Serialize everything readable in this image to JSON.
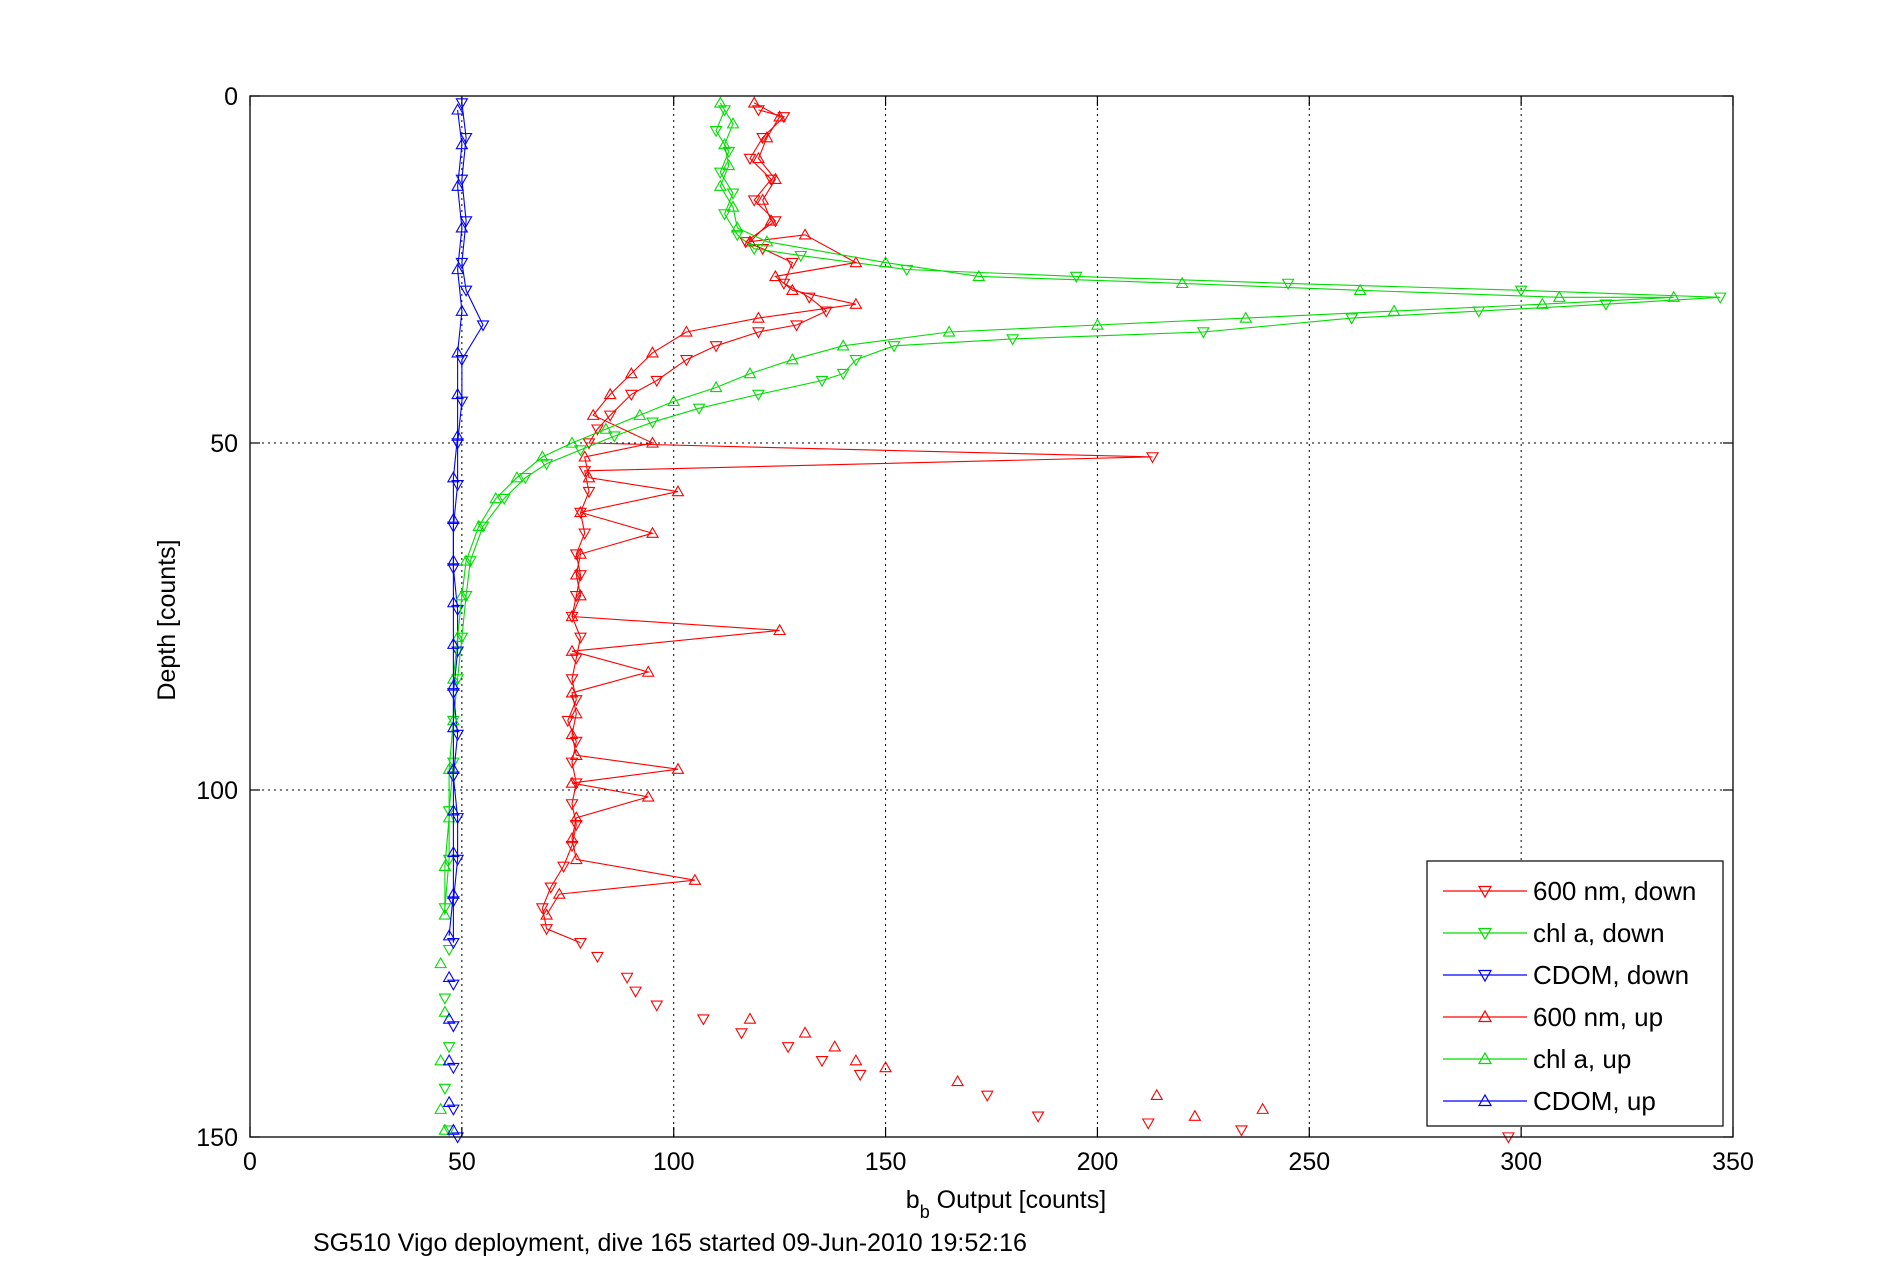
{
  "chart_data": {
    "type": "scatter",
    "title": "",
    "xlabel_main": "b",
    "xlabel_sub": "b",
    "xlabel_rest": " Output [counts]",
    "ylabel": "Depth [counts]",
    "caption": "SG510 Vigo deployment, dive 165 started 09-Jun-2010 19:52:16",
    "xlim": [
      0,
      350
    ],
    "ylim": [
      0,
      150
    ],
    "y_reversed": true,
    "grid": true,
    "legend_position": "bottom-right",
    "x_ticks": [
      "0",
      "50",
      "100",
      "150",
      "200",
      "250",
      "300",
      "350"
    ],
    "y_ticks": [
      "0",
      "50",
      "100",
      "150"
    ],
    "colors": {
      "red": "#ff0000",
      "green": "#00dd00",
      "blue": "#0000ff"
    },
    "series": [
      {
        "name": "600 nm, down",
        "color": "#ff0000",
        "marker": "triangle-down",
        "points": [
          [
            120,
            2
          ],
          [
            126,
            3
          ],
          [
            121,
            6
          ],
          [
            118,
            9
          ],
          [
            123,
            12
          ],
          [
            119,
            15
          ],
          [
            124,
            18
          ],
          [
            117,
            21
          ],
          [
            121,
            22
          ],
          [
            128,
            24
          ],
          [
            126,
            27
          ],
          [
            132,
            29
          ],
          [
            136,
            31
          ],
          [
            129,
            33
          ],
          [
            120,
            34
          ],
          [
            110,
            36
          ],
          [
            103,
            38
          ],
          [
            96,
            41
          ],
          [
            90,
            43
          ],
          [
            85,
            46
          ],
          [
            82,
            48
          ],
          [
            80,
            50
          ],
          [
            213,
            52
          ],
          [
            79,
            54
          ],
          [
            80,
            57
          ],
          [
            78,
            60
          ],
          [
            79,
            63
          ],
          [
            77,
            66
          ],
          [
            78,
            69
          ],
          [
            77,
            72
          ],
          [
            76,
            75
          ],
          [
            78,
            78
          ],
          [
            77,
            81
          ],
          [
            76,
            84
          ],
          [
            77,
            87
          ],
          [
            75,
            90
          ],
          [
            77,
            93
          ],
          [
            76,
            96
          ],
          [
            77,
            99
          ],
          [
            76,
            102
          ],
          [
            77,
            105
          ],
          [
            76,
            108
          ],
          [
            74,
            111
          ],
          [
            71,
            114
          ],
          [
            69,
            117
          ],
          [
            70,
            120
          ],
          [
            78,
            122
          ],
          [
            82,
            124
          ],
          [
            89,
            127
          ],
          [
            91,
            129
          ],
          [
            96,
            131
          ],
          [
            107,
            133
          ],
          [
            116,
            135
          ],
          [
            127,
            137
          ],
          [
            135,
            139
          ],
          [
            144,
            141
          ],
          [
            174,
            144
          ],
          [
            186,
            147
          ],
          [
            212,
            148
          ],
          [
            234,
            149
          ],
          [
            297,
            150
          ]
        ]
      },
      {
        "name": "chl a, down",
        "color": "#00dd00",
        "marker": "triangle-down",
        "points": [
          [
            112,
            2
          ],
          [
            110,
            5
          ],
          [
            113,
            8
          ],
          [
            111,
            11
          ],
          [
            114,
            14
          ],
          [
            112,
            17
          ],
          [
            115,
            20
          ],
          [
            119,
            22
          ],
          [
            130,
            23
          ],
          [
            155,
            25
          ],
          [
            195,
            26
          ],
          [
            245,
            27
          ],
          [
            300,
            28
          ],
          [
            347,
            29
          ],
          [
            320,
            30
          ],
          [
            290,
            31
          ],
          [
            260,
            32
          ],
          [
            225,
            34
          ],
          [
            180,
            35
          ],
          [
            152,
            36
          ],
          [
            143,
            38
          ],
          [
            140,
            40
          ],
          [
            135,
            41
          ],
          [
            120,
            43
          ],
          [
            106,
            45
          ],
          [
            95,
            47
          ],
          [
            86,
            49
          ],
          [
            78,
            51
          ],
          [
            70,
            53
          ],
          [
            65,
            55
          ],
          [
            60,
            58
          ],
          [
            55,
            62
          ],
          [
            52,
            67
          ],
          [
            51,
            72
          ],
          [
            50,
            78
          ],
          [
            49,
            84
          ],
          [
            48,
            90
          ],
          [
            48,
            96
          ],
          [
            47,
            103
          ],
          [
            47,
            110
          ],
          [
            46,
            117
          ],
          [
            47,
            123
          ],
          [
            46,
            130
          ],
          [
            47,
            137
          ],
          [
            46,
            143
          ],
          [
            47,
            149
          ]
        ]
      },
      {
        "name": "CDOM, down",
        "color": "#0000ff",
        "marker": "triangle-down",
        "points": [
          [
            50,
            1
          ],
          [
            51,
            6
          ],
          [
            50,
            12
          ],
          [
            51,
            18
          ],
          [
            50,
            24
          ],
          [
            51,
            28
          ],
          [
            55,
            33
          ],
          [
            50,
            38
          ],
          [
            50,
            44
          ],
          [
            49,
            50
          ],
          [
            49,
            56
          ],
          [
            48,
            62
          ],
          [
            48,
            68
          ],
          [
            49,
            74
          ],
          [
            49,
            80
          ],
          [
            48,
            86
          ],
          [
            49,
            92
          ],
          [
            48,
            98
          ],
          [
            49,
            104
          ],
          [
            49,
            110
          ],
          [
            48,
            116
          ],
          [
            48,
            122
          ],
          [
            48,
            128
          ],
          [
            48,
            134
          ],
          [
            48,
            140
          ],
          [
            48,
            146
          ],
          [
            49,
            150
          ]
        ]
      },
      {
        "name": "600 nm, up",
        "color": "#ff0000",
        "marker": "triangle-up",
        "points": [
          [
            119,
            1
          ],
          [
            125,
            3
          ],
          [
            122,
            6
          ],
          [
            120,
            9
          ],
          [
            124,
            12
          ],
          [
            121,
            15
          ],
          [
            123,
            18
          ],
          [
            118,
            21
          ],
          [
            131,
            20
          ],
          [
            143,
            24
          ],
          [
            124,
            26
          ],
          [
            128,
            28
          ],
          [
            143,
            30
          ],
          [
            120,
            32
          ],
          [
            103,
            34
          ],
          [
            95,
            37
          ],
          [
            90,
            40
          ],
          [
            85,
            43
          ],
          [
            81,
            46
          ],
          [
            95,
            50
          ],
          [
            79,
            52
          ],
          [
            80,
            55
          ],
          [
            101,
            57
          ],
          [
            78,
            60
          ],
          [
            95,
            63
          ],
          [
            78,
            66
          ],
          [
            77,
            69
          ],
          [
            78,
            72
          ],
          [
            76,
            75
          ],
          [
            125,
            77
          ],
          [
            76,
            80
          ],
          [
            94,
            83
          ],
          [
            76,
            86
          ],
          [
            77,
            89
          ],
          [
            76,
            92
          ],
          [
            77,
            95
          ],
          [
            101,
            97
          ],
          [
            76,
            99
          ],
          [
            94,
            101
          ],
          [
            77,
            104
          ],
          [
            76,
            107
          ],
          [
            77,
            110
          ],
          [
            105,
            113
          ],
          [
            73,
            115
          ],
          [
            70,
            118
          ],
          [
            118,
            133
          ],
          [
            131,
            135
          ],
          [
            138,
            137
          ],
          [
            143,
            139
          ],
          [
            150,
            140
          ],
          [
            167,
            142
          ],
          [
            214,
            144
          ],
          [
            223,
            147
          ],
          [
            239,
            146
          ]
        ]
      },
      {
        "name": "chl a, up",
        "color": "#00dd00",
        "marker": "triangle-up",
        "points": [
          [
            111,
            1
          ],
          [
            114,
            4
          ],
          [
            112,
            7
          ],
          [
            113,
            10
          ],
          [
            111,
            13
          ],
          [
            114,
            16
          ],
          [
            115,
            19
          ],
          [
            122,
            21
          ],
          [
            150,
            24
          ],
          [
            172,
            26
          ],
          [
            220,
            27
          ],
          [
            262,
            28
          ],
          [
            309,
            29
          ],
          [
            336,
            29
          ],
          [
            305,
            30
          ],
          [
            270,
            31
          ],
          [
            235,
            32
          ],
          [
            200,
            33
          ],
          [
            165,
            34
          ],
          [
            140,
            36
          ],
          [
            128,
            38
          ],
          [
            118,
            40
          ],
          [
            110,
            42
          ],
          [
            100,
            44
          ],
          [
            92,
            46
          ],
          [
            84,
            48
          ],
          [
            76,
            50
          ],
          [
            69,
            52
          ],
          [
            63,
            55
          ],
          [
            58,
            58
          ],
          [
            54,
            62
          ],
          [
            51,
            67
          ],
          [
            50,
            72
          ],
          [
            49,
            78
          ],
          [
            48,
            84
          ],
          [
            48,
            90
          ],
          [
            47,
            97
          ],
          [
            47,
            104
          ],
          [
            46,
            111
          ],
          [
            46,
            118
          ],
          [
            45,
            125
          ],
          [
            46,
            132
          ],
          [
            45,
            139
          ],
          [
            45,
            146
          ],
          [
            46,
            149
          ]
        ]
      },
      {
        "name": "CDOM, up",
        "color": "#0000ff",
        "marker": "triangle-up",
        "points": [
          [
            49,
            2
          ],
          [
            50,
            7
          ],
          [
            49,
            13
          ],
          [
            50,
            19
          ],
          [
            49,
            25
          ],
          [
            50,
            31
          ],
          [
            49,
            37
          ],
          [
            49,
            43
          ],
          [
            49,
            49
          ],
          [
            48,
            55
          ],
          [
            48,
            61
          ],
          [
            48,
            67
          ],
          [
            48,
            73
          ],
          [
            48,
            79
          ],
          [
            48,
            85
          ],
          [
            48,
            91
          ],
          [
            48,
            97
          ],
          [
            48,
            103
          ],
          [
            48,
            109
          ],
          [
            48,
            115
          ],
          [
            47,
            121
          ],
          [
            47,
            127
          ],
          [
            47,
            133
          ],
          [
            47,
            139
          ],
          [
            47,
            145
          ],
          [
            48,
            149
          ]
        ]
      }
    ]
  }
}
